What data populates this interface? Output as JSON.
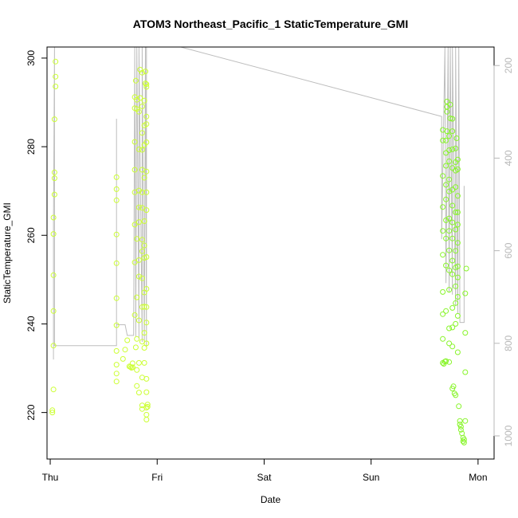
{
  "chart_data": {
    "type": "scatter",
    "title": "ATOM3 Northeast_Pacific_1 StaticTemperature_GMI",
    "xlabel": "Date",
    "ylabel": "StaticTemperature_GMI",
    "xlim": [
      -0.03,
      4.15
    ],
    "ylim": [
      209.5,
      302.5
    ],
    "y2lim": [
      1050,
      160
    ],
    "x_ticks": [
      {
        "value": 0,
        "label": "Thu"
      },
      {
        "value": 1,
        "label": "Fri"
      },
      {
        "value": 2,
        "label": "Sat"
      },
      {
        "value": 3,
        "label": "Sun"
      },
      {
        "value": 4,
        "label": "Mon"
      }
    ],
    "y_ticks": [
      220,
      240,
      260,
      280,
      300
    ],
    "y2_ticks": [
      200,
      400,
      600,
      800,
      1000
    ],
    "grid": false,
    "colors": {
      "points_early": "#ccff33",
      "points_late": "#88f52a",
      "pressure_line": "#bdbdbd",
      "axis": "#000000",
      "right_axis": "#b8b8b8"
    },
    "series": [
      {
        "points": [
          [
            0.02,
            220.5
          ],
          [
            0.02,
            220.0
          ],
          [
            0.03,
            225.2
          ],
          [
            0.03,
            235.1
          ],
          [
            0.03,
            242.9
          ],
          [
            0.03,
            251.0
          ],
          [
            0.03,
            260.3
          ],
          [
            0.03,
            264.0
          ],
          [
            0.04,
            269.2
          ],
          [
            0.04,
            272.9
          ],
          [
            0.04,
            274.2
          ],
          [
            0.04,
            286.2
          ],
          [
            0.05,
            293.6
          ],
          [
            0.05,
            295.8
          ],
          [
            0.05,
            299.2
          ],
          [
            0.62,
            227.0
          ],
          [
            0.62,
            228.8
          ],
          [
            0.62,
            230.8
          ],
          [
            0.62,
            233.9
          ],
          [
            0.62,
            239.7
          ],
          [
            0.62,
            245.8
          ],
          [
            0.62,
            253.7
          ],
          [
            0.62,
            260.2
          ],
          [
            0.62,
            267.9
          ],
          [
            0.62,
            270.4
          ],
          [
            0.62,
            273.1
          ],
          [
            0.68,
            232.1
          ],
          [
            0.7,
            234.2
          ],
          [
            0.72,
            236.3
          ],
          [
            0.74,
            230.4
          ],
          [
            0.75,
            230.3
          ],
          [
            0.76,
            230.1
          ],
          [
            0.77,
            230.2
          ],
          [
            0.77,
            231.1
          ],
          [
            0.79,
            242.0
          ],
          [
            0.79,
            253.9
          ],
          [
            0.79,
            262.4
          ],
          [
            0.79,
            269.7
          ],
          [
            0.79,
            274.8
          ],
          [
            0.79,
            281.1
          ],
          [
            0.79,
            288.7
          ],
          [
            0.79,
            291.2
          ],
          [
            0.8,
            294.9
          ],
          [
            0.8,
            234.7
          ],
          [
            0.81,
            226.0
          ],
          [
            0.81,
            229.6
          ],
          [
            0.81,
            236.6
          ],
          [
            0.81,
            246.0
          ],
          [
            0.81,
            259.2
          ],
          [
            0.81,
            288.5
          ],
          [
            0.81,
            290.6
          ],
          [
            0.83,
            224.5
          ],
          [
            0.83,
            231.2
          ],
          [
            0.83,
            240.8
          ],
          [
            0.83,
            250.7
          ],
          [
            0.83,
            254.4
          ],
          [
            0.83,
            263.0
          ],
          [
            0.83,
            266.3
          ],
          [
            0.83,
            270.1
          ],
          [
            0.83,
            279.4
          ],
          [
            0.83,
            287.9
          ],
          [
            0.84,
            291.0
          ],
          [
            0.84,
            297.4
          ],
          [
            0.86,
            220.8
          ],
          [
            0.86,
            221.6
          ],
          [
            0.86,
            227.9
          ],
          [
            0.86,
            236.0
          ],
          [
            0.86,
            243.8
          ],
          [
            0.86,
            250.3
          ],
          [
            0.86,
            256.4
          ],
          [
            0.86,
            259.0
          ],
          [
            0.86,
            266.2
          ],
          [
            0.86,
            269.7
          ],
          [
            0.86,
            274.8
          ],
          [
            0.86,
            279.3
          ],
          [
            0.86,
            283.1
          ],
          [
            0.86,
            289.1
          ],
          [
            0.86,
            296.7
          ],
          [
            0.88,
            231.2
          ],
          [
            0.88,
            234.6
          ],
          [
            0.88,
            238.0
          ],
          [
            0.88,
            243.9
          ],
          [
            0.88,
            247.1
          ],
          [
            0.88,
            254.9
          ],
          [
            0.88,
            257.7
          ],
          [
            0.88,
            263.2
          ],
          [
            0.88,
            273.0
          ],
          [
            0.88,
            280.4
          ],
          [
            0.88,
            284.8
          ],
          [
            0.88,
            290.4
          ],
          [
            0.89,
            294.3
          ],
          [
            0.89,
            297.0
          ],
          [
            0.9,
            218.4
          ],
          [
            0.9,
            219.5
          ],
          [
            0.9,
            221.1
          ],
          [
            0.9,
            224.6
          ],
          [
            0.9,
            227.6
          ],
          [
            0.9,
            235.6
          ],
          [
            0.9,
            240.3
          ],
          [
            0.9,
            243.8
          ],
          [
            0.9,
            247.9
          ],
          [
            0.9,
            255.1
          ],
          [
            0.9,
            265.7
          ],
          [
            0.9,
            269.7
          ],
          [
            0.9,
            274.4
          ],
          [
            0.9,
            281.0
          ],
          [
            0.9,
            285.1
          ],
          [
            0.9,
            286.8
          ],
          [
            0.9,
            293.5
          ],
          [
            0.9,
            294.1
          ],
          [
            0.91,
            221.3
          ],
          [
            0.91,
            221.8
          ]
        ]
      },
      {
        "points": [
          [
            3.67,
            281.4
          ],
          [
            3.67,
            283.8
          ],
          [
            3.67,
            273.4
          ],
          [
            3.67,
            266.4
          ],
          [
            3.67,
            261.0
          ],
          [
            3.67,
            255.6
          ],
          [
            3.67,
            247.2
          ],
          [
            3.67,
            242.2
          ],
          [
            3.67,
            236.6
          ],
          [
            3.67,
            231.2
          ],
          [
            3.68,
            231.0
          ],
          [
            3.69,
            231.5
          ],
          [
            3.7,
            231.6
          ],
          [
            3.7,
            242.9
          ],
          [
            3.7,
            253.2
          ],
          [
            3.7,
            259.3
          ],
          [
            3.7,
            263.4
          ],
          [
            3.7,
            268.1
          ],
          [
            3.7,
            271.4
          ],
          [
            3.7,
            275.7
          ],
          [
            3.7,
            278.6
          ],
          [
            3.7,
            281.4
          ],
          [
            3.71,
            283.5
          ],
          [
            3.71,
            287.9
          ],
          [
            3.71,
            289.0
          ],
          [
            3.71,
            290.2
          ],
          [
            3.73,
            231.4
          ],
          [
            3.73,
            235.6
          ],
          [
            3.73,
            239.0
          ],
          [
            3.73,
            247.7
          ],
          [
            3.73,
            252.1
          ],
          [
            3.73,
            256.6
          ],
          [
            3.73,
            261.0
          ],
          [
            3.73,
            263.8
          ],
          [
            3.73,
            269.9
          ],
          [
            3.73,
            272.6
          ],
          [
            3.73,
            276.7
          ],
          [
            3.73,
            279.2
          ],
          [
            3.73,
            282.4
          ],
          [
            3.74,
            286.4
          ],
          [
            3.74,
            289.5
          ],
          [
            3.76,
            225.4
          ],
          [
            3.76,
            234.9
          ],
          [
            3.76,
            239.2
          ],
          [
            3.76,
            243.6
          ],
          [
            3.76,
            251.2
          ],
          [
            3.76,
            254.3
          ],
          [
            3.76,
            259.3
          ],
          [
            3.76,
            262.9
          ],
          [
            3.76,
            266.7
          ],
          [
            3.76,
            270.3
          ],
          [
            3.76,
            275.2
          ],
          [
            3.76,
            279.4
          ],
          [
            3.76,
            283.5
          ],
          [
            3.76,
            286.3
          ],
          [
            3.77,
            225.9
          ],
          [
            3.78,
            224.3
          ],
          [
            3.79,
            223.9
          ],
          [
            3.79,
            240.0
          ],
          [
            3.79,
            244.7
          ],
          [
            3.79,
            248.5
          ],
          [
            3.79,
            252.7
          ],
          [
            3.79,
            256.5
          ],
          [
            3.79,
            261.3
          ],
          [
            3.79,
            265.2
          ],
          [
            3.79,
            270.9
          ],
          [
            3.79,
            274.6
          ],
          [
            3.79,
            276.5
          ],
          [
            3.79,
            279.6
          ],
          [
            3.8,
            281.9
          ],
          [
            3.81,
            233.6
          ],
          [
            3.81,
            241.8
          ],
          [
            3.81,
            246.1
          ],
          [
            3.81,
            250.5
          ],
          [
            3.81,
            253.0
          ],
          [
            3.81,
            258.3
          ],
          [
            3.81,
            262.4
          ],
          [
            3.81,
            265.2
          ],
          [
            3.81,
            268.9
          ],
          [
            3.81,
            274.9
          ],
          [
            3.81,
            277.1
          ],
          [
            3.82,
            221.4
          ],
          [
            3.83,
            218.1
          ],
          [
            3.83,
            217.3
          ],
          [
            3.84,
            216.8
          ],
          [
            3.84,
            216.1
          ],
          [
            3.85,
            215.3
          ],
          [
            3.86,
            214.3
          ],
          [
            3.86,
            213.5
          ],
          [
            3.87,
            213.2
          ],
          [
            3.87,
            213.9
          ],
          [
            3.88,
            218.1
          ],
          [
            3.88,
            229.1
          ],
          [
            3.88,
            238.0
          ],
          [
            3.88,
            246.9
          ],
          [
            3.89,
            252.5
          ]
        ]
      }
    ],
    "pressure_line": [
      [
        0.03,
        835
      ],
      [
        0.03,
        540
      ],
      [
        0.04,
        160
      ],
      [
        0.04,
        805
      ],
      [
        0.62,
        805
      ],
      [
        0.62,
        315
      ],
      [
        0.62,
        760
      ],
      [
        0.7,
        760
      ],
      [
        0.72,
        783
      ],
      [
        0.78,
        783
      ],
      [
        0.79,
        160
      ],
      [
        0.8,
        785
      ],
      [
        0.81,
        160
      ],
      [
        0.83,
        790
      ],
      [
        0.83,
        160
      ],
      [
        0.86,
        797
      ],
      [
        0.86,
        160
      ],
      [
        0.88,
        800
      ],
      [
        0.89,
        160
      ],
      [
        0.9,
        808
      ],
      [
        0.9,
        160
      ],
      [
        0.91,
        160
      ],
      [
        1.22,
        160
      ],
      [
        3.66,
        310
      ],
      [
        3.66,
        575
      ],
      [
        3.69,
        160
      ],
      [
        3.7,
        670
      ],
      [
        3.72,
        160
      ],
      [
        3.73,
        690
      ],
      [
        3.74,
        160
      ],
      [
        3.76,
        695
      ],
      [
        3.76,
        160
      ],
      [
        3.79,
        720
      ],
      [
        3.79,
        160
      ],
      [
        3.81,
        735
      ],
      [
        3.82,
        160
      ],
      [
        3.83,
        755
      ],
      [
        3.87,
        755
      ],
      [
        3.87,
        460
      ]
    ]
  }
}
